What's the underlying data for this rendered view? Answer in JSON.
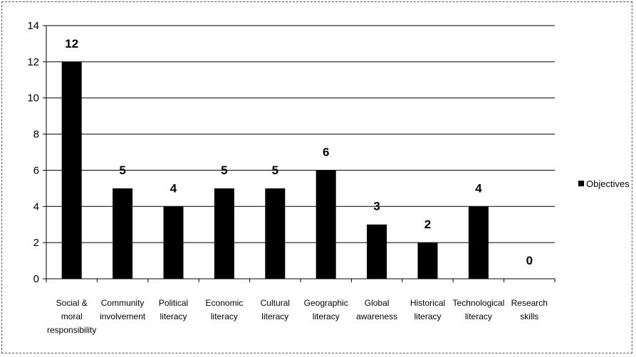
{
  "chart_data": {
    "type": "bar",
    "categories": [
      [
        "Social &",
        "moral",
        "responsibility"
      ],
      [
        "Community",
        "involvement"
      ],
      [
        "Political",
        "literacy"
      ],
      [
        "Economic",
        "literacy"
      ],
      [
        "Cultural",
        "literacy"
      ],
      [
        "Geographic",
        "literacy"
      ],
      [
        "Global",
        "awareness"
      ],
      [
        "Historical",
        "literacy"
      ],
      [
        "Technological",
        "literacy"
      ],
      [
        "Research",
        "skills"
      ]
    ],
    "series": [
      {
        "name": "Objectives",
        "values": [
          12,
          5,
          4,
          5,
          5,
          6,
          3,
          2,
          4,
          0
        ]
      }
    ],
    "ylim": [
      0,
      14
    ],
    "yticks": [
      0,
      2,
      4,
      6,
      8,
      10,
      12,
      14
    ],
    "grid": true,
    "legend_position": "right",
    "bar_color": "#000000"
  }
}
